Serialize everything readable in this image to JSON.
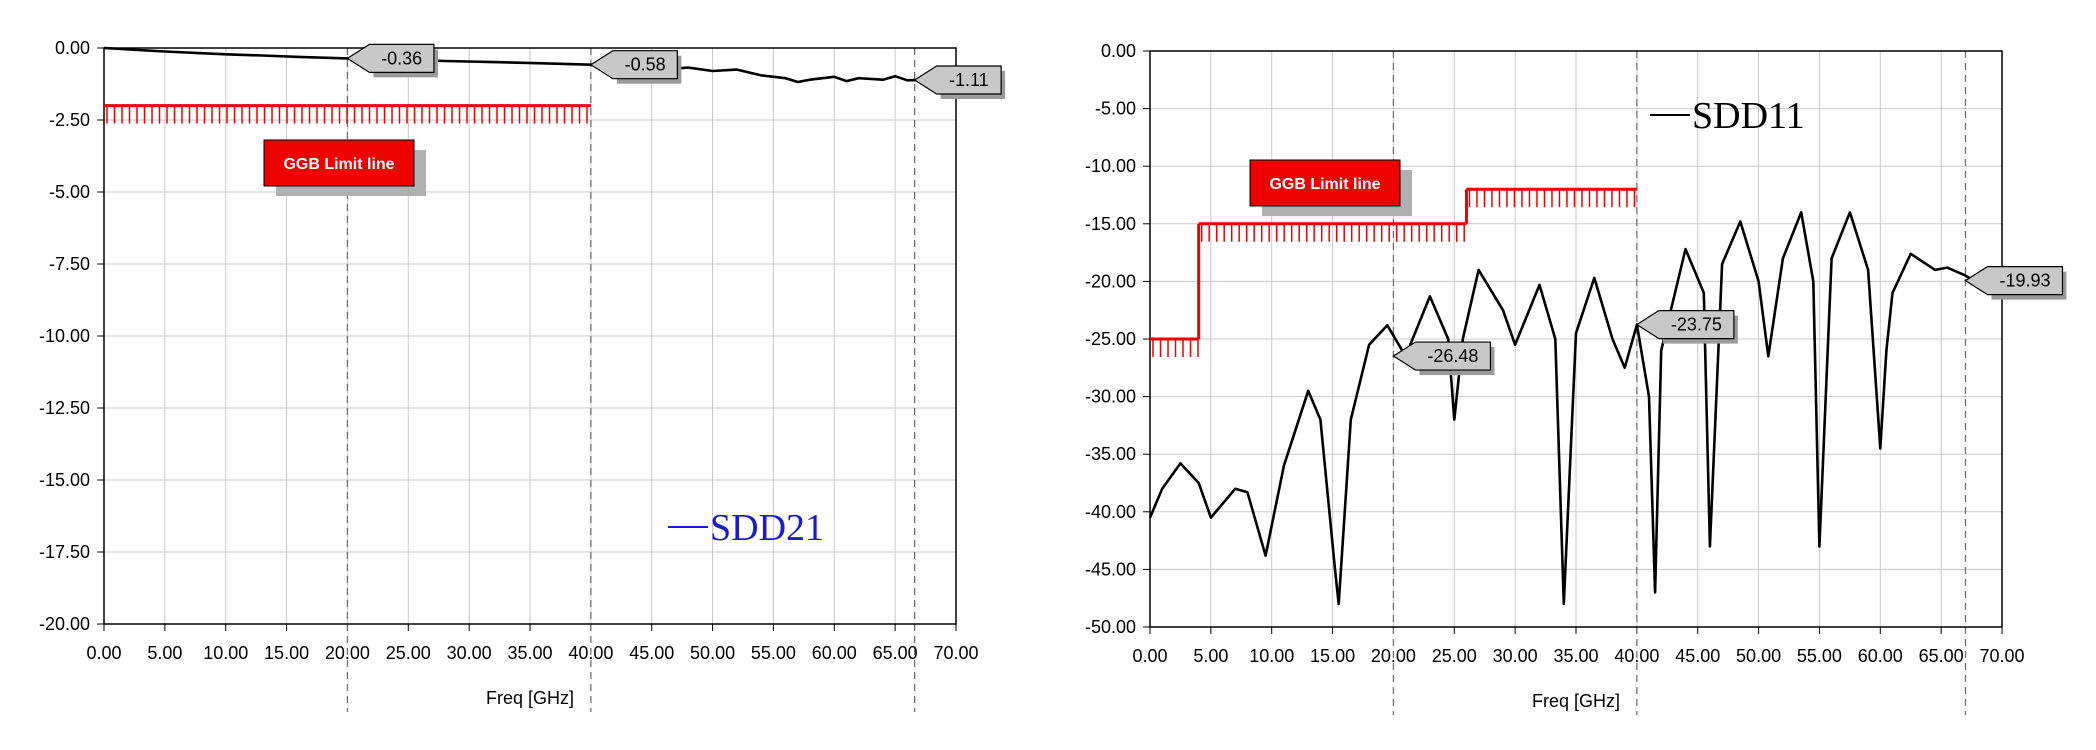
{
  "chart_data": [
    {
      "type": "line",
      "xlabel": "Freq [GHz]",
      "ylabel": "",
      "xlim": [
        0,
        70
      ],
      "ylim": [
        -20,
        0
      ],
      "xticks": [
        "0.00",
        "5.00",
        "10.00",
        "15.00",
        "20.00",
        "25.00",
        "30.00",
        "35.00",
        "40.00",
        "45.00",
        "50.00",
        "55.00",
        "60.00",
        "65.00",
        "70.00"
      ],
      "yticks": [
        "0.00",
        "-2.50",
        "-5.00",
        "-7.50",
        "-10.00",
        "-12.50",
        "-15.00",
        "-17.50",
        "-20.00"
      ],
      "grid": true,
      "legend": {
        "entries": [
          "SDD21"
        ],
        "placement": "bottom-right",
        "color": "#1a1ad6"
      },
      "series": [
        {
          "name": "SDD21",
          "color": "#000000",
          "x": [
            0,
            2,
            5,
            8,
            10,
            13,
            16,
            20,
            24,
            28,
            32,
            36,
            40,
            42,
            44,
            46,
            48,
            50,
            52,
            54,
            56,
            57,
            58,
            60,
            61,
            62,
            64,
            65,
            66,
            67
          ],
          "y": [
            0.0,
            -0.05,
            -0.12,
            -0.18,
            -0.22,
            -0.26,
            -0.31,
            -0.36,
            -0.4,
            -0.45,
            -0.49,
            -0.53,
            -0.58,
            -0.62,
            -0.7,
            -0.75,
            -0.68,
            -0.8,
            -0.75,
            -0.95,
            -1.05,
            -1.18,
            -1.1,
            -1.0,
            -1.15,
            -1.05,
            -1.1,
            -0.98,
            -1.12,
            -1.11
          ]
        }
      ],
      "limit_line": {
        "label": "GGB Limit line",
        "color": "#ee0000",
        "segments": [
          {
            "x": [
              0,
              40
            ],
            "y": -2.0
          }
        ]
      },
      "markers": [
        {
          "x": 20,
          "y": -0.36,
          "label": "-0.36"
        },
        {
          "x": 40,
          "y": -0.58,
          "label": "-0.58"
        },
        {
          "x": 66.6,
          "y": -1.11,
          "label": "-1.11"
        }
      ],
      "marker_lines_x": [
        20,
        40,
        66.6
      ]
    },
    {
      "type": "line",
      "xlabel": "Freq [GHz]",
      "ylabel": "",
      "xlim": [
        0,
        70
      ],
      "ylim": [
        -50,
        0
      ],
      "xticks": [
        "0.00",
        "5.00",
        "10.00",
        "15.00",
        "20.00",
        "25.00",
        "30.00",
        "35.00",
        "40.00",
        "45.00",
        "50.00",
        "55.00",
        "60.00",
        "65.00",
        "70.00"
      ],
      "yticks": [
        "0.00",
        "-5.00",
        "-10.00",
        "-15.00",
        "-20.00",
        "-25.00",
        "-30.00",
        "-35.00",
        "-40.00",
        "-45.00",
        "-50.00"
      ],
      "grid": true,
      "legend": {
        "entries": [
          "SDD11"
        ],
        "placement": "top-right",
        "color": "#000000"
      },
      "series": [
        {
          "name": "SDD11",
          "color": "#000000",
          "x": [
            0,
            1,
            2.5,
            4,
            5,
            7,
            8,
            9.5,
            11,
            13,
            14,
            15.2,
            15.5,
            16.5,
            18,
            19.5,
            21,
            23,
            24.5,
            25,
            25.7,
            27,
            29,
            30,
            32,
            33.3,
            34,
            35,
            36.5,
            38,
            39,
            40,
            41,
            41.5,
            42,
            44,
            45.5,
            46,
            47,
            48.5,
            50,
            50.8,
            52,
            53.5,
            54.5,
            55,
            56,
            57.5,
            59,
            60,
            60.5,
            61,
            62.5,
            64.5,
            65.5,
            67,
            68.6
          ],
          "y": [
            -40.5,
            -38,
            -35.8,
            -37.5,
            -40.5,
            -38,
            -38.3,
            -43.8,
            -36,
            -29.5,
            -32,
            -45,
            -48,
            -32,
            -25.5,
            -23.8,
            -26.5,
            -21.3,
            -25,
            -32,
            -25,
            -19,
            -22.5,
            -25.5,
            -20.3,
            -25,
            -48,
            -24.5,
            -19.7,
            -25,
            -27.5,
            -23.75,
            -30,
            -47,
            -26,
            -17.2,
            -21,
            -43,
            -18.5,
            -14.8,
            -20,
            -26.5,
            -18,
            -14,
            -20,
            -43,
            -18,
            -14,
            -19,
            -34.5,
            -26,
            -21,
            -17.6,
            -19,
            -18.8,
            -19.5,
            -20.5
          ]
        }
      ],
      "limit_line": {
        "label": "GGB Limit line",
        "color": "#ee0000",
        "segments": [
          {
            "x": [
              0,
              4
            ],
            "y": -25
          },
          {
            "x": [
              4,
              26
            ],
            "y": -15
          },
          {
            "x": [
              26,
              40
            ],
            "y": -12
          }
        ]
      },
      "markers": [
        {
          "x": 20,
          "y": -26.48,
          "label": "-26.48"
        },
        {
          "x": 40,
          "y": -23.75,
          "label": "-23.75"
        },
        {
          "x": 67,
          "y": -19.93,
          "label": "-19.93"
        }
      ],
      "marker_lines_x": [
        20,
        40,
        67
      ]
    }
  ]
}
